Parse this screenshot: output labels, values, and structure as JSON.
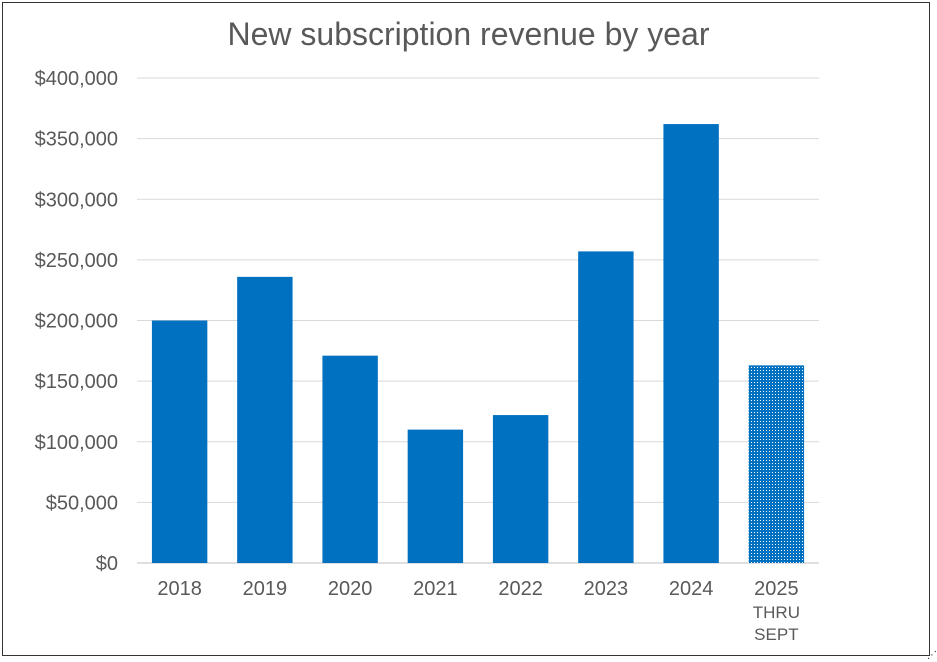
{
  "chart_data": {
    "type": "bar",
    "title": "New subscription revenue by year",
    "xlabel": "",
    "ylabel": "",
    "ylim": [
      0,
      400000
    ],
    "yticks": [
      0,
      50000,
      100000,
      150000,
      200000,
      250000,
      300000,
      350000,
      400000
    ],
    "ytick_labels": [
      "$0",
      "$50,000",
      "$100,000",
      "$150,000",
      "$200,000",
      "$250,000",
      "$300,000",
      "$350,000",
      "$400,000"
    ],
    "grid": true,
    "categories": [
      {
        "label": "2018",
        "sub": [
          "",
          ""
        ]
      },
      {
        "label": "2019",
        "sub": [
          "",
          ""
        ]
      },
      {
        "label": "2020",
        "sub": [
          "",
          ""
        ]
      },
      {
        "label": "2021",
        "sub": [
          "",
          ""
        ]
      },
      {
        "label": "2022",
        "sub": [
          "",
          ""
        ]
      },
      {
        "label": "2023",
        "sub": [
          "",
          ""
        ]
      },
      {
        "label": "2024",
        "sub": [
          "",
          ""
        ]
      },
      {
        "label": "2025",
        "sub": [
          "THRU",
          "SEPT"
        ]
      }
    ],
    "values": [
      200000,
      236000,
      171000,
      110000,
      122000,
      257000,
      362000,
      163000
    ],
    "partial": [
      false,
      false,
      false,
      false,
      false,
      false,
      false,
      true
    ],
    "colors": {
      "bar": "#0070C0",
      "partial_bar": "#0070C0",
      "grid": "#D9D9D9",
      "axis": "#BFBFBF"
    }
  }
}
